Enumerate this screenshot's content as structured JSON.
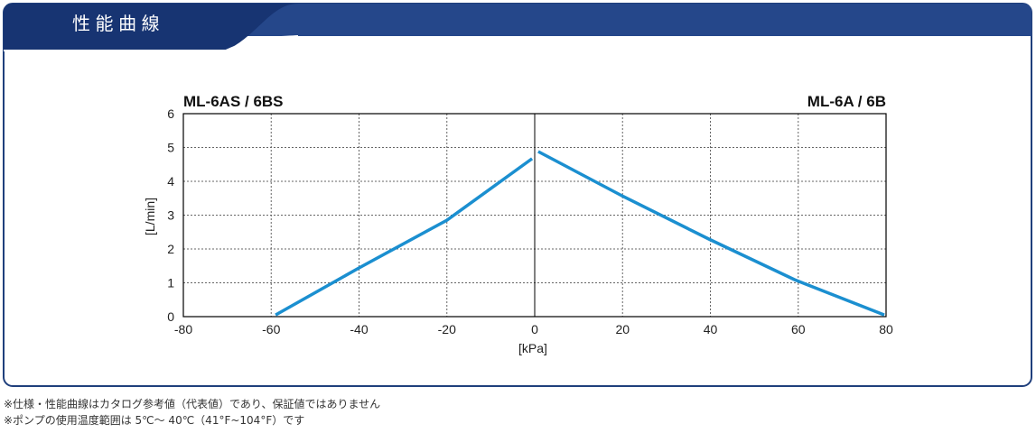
{
  "header": {
    "title": "性 能 曲 線"
  },
  "chart_data": {
    "type": "line",
    "x_label": "[kPa]",
    "y_label": "[L/min]",
    "xlim": [
      -80,
      80
    ],
    "xticks": [
      -80,
      -60,
      -40,
      -20,
      0,
      20,
      40,
      60,
      80
    ],
    "ylim": [
      0,
      6
    ],
    "yticks": [
      0,
      1,
      2,
      3,
      4,
      5,
      6
    ],
    "grid": true,
    "series": [
      {
        "name": "ML-6AS / 6BS",
        "color": "#1b8fd0",
        "x": [
          -59,
          -40,
          -20,
          -0.6
        ],
        "values": [
          0.05,
          1.44,
          2.85,
          4.67
        ]
      },
      {
        "name": "ML-6A / 6B",
        "color": "#1b8fd0",
        "x": [
          0.8,
          20.2,
          39.7,
          59.2,
          79.6
        ],
        "values": [
          4.88,
          3.55,
          2.29,
          1.09,
          0.05
        ]
      }
    ]
  },
  "notes": [
    "※仕様・性能曲線はカタログ参考値（代表値）であり、保証値ではありません",
    "※ポンプの使用温度範囲は 5℃～ 40℃（41°F~104°F）です"
  ]
}
